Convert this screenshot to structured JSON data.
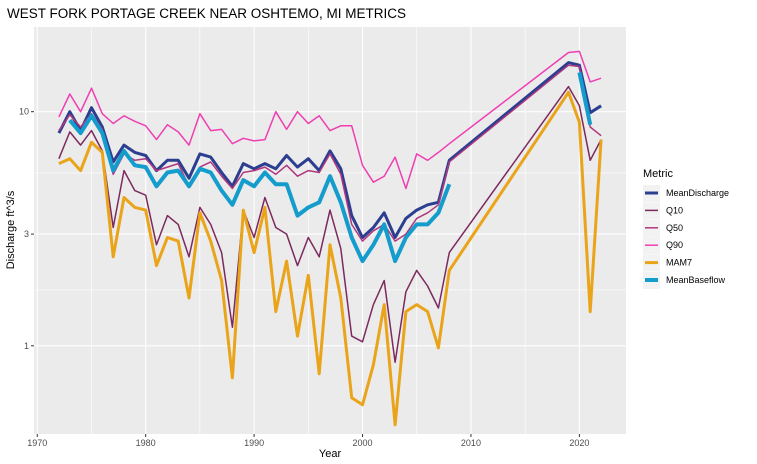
{
  "chart_data": {
    "type": "line",
    "title": "WEST FORK PORTAGE CREEK NEAR OSHTEMO, MI  METRICS",
    "xlabel": "Year",
    "ylabel": "Discharge ft^3/s",
    "y_scale": "log10",
    "xlim": [
      1969.7,
      2024.3
    ],
    "ylim": [
      0.42,
      23
    ],
    "x_ticks": [
      1970,
      1980,
      1990,
      2000,
      2010,
      2020
    ],
    "y_ticks": [
      1,
      3,
      10
    ],
    "grid": true,
    "panel_background": "#ebebeb",
    "legend_title": "Metric",
    "legend_position": "right",
    "series": [
      {
        "name": "MeanDischarge",
        "color": "#2c3e8f",
        "line_width": 3,
        "points": [
          [
            1972,
            8.1
          ],
          [
            1973,
            10.0
          ],
          [
            1974,
            8.3
          ],
          [
            1975,
            10.4
          ],
          [
            1976,
            8.6
          ],
          [
            1977,
            6.1
          ],
          [
            1978,
            7.2
          ],
          [
            1979,
            6.7
          ],
          [
            1980,
            6.5
          ],
          [
            1981,
            5.6
          ],
          [
            1982,
            6.2
          ],
          [
            1983,
            6.2
          ],
          [
            1984,
            5.2
          ],
          [
            1985,
            6.6
          ],
          [
            1986,
            6.4
          ],
          [
            1987,
            5.5
          ],
          [
            1988,
            4.8
          ],
          [
            1989,
            6.0
          ],
          [
            1990,
            5.7
          ],
          [
            1991,
            6.0
          ],
          [
            1992,
            5.7
          ],
          [
            1993,
            6.5
          ],
          [
            1994,
            5.8
          ],
          [
            1995,
            6.3
          ],
          [
            1996,
            5.6
          ],
          [
            1997,
            6.8
          ],
          [
            1998,
            5.7
          ],
          [
            1999,
            3.6
          ],
          [
            2000,
            2.9
          ],
          [
            2001,
            3.2
          ],
          [
            2002,
            3.7
          ],
          [
            2003,
            2.9
          ],
          [
            2004,
            3.5
          ],
          [
            2005,
            3.8
          ],
          [
            2006,
            4.0
          ],
          [
            2007,
            4.1
          ],
          [
            2008,
            6.2
          ],
          [
            2019,
            16.2
          ],
          [
            2020,
            15.8
          ],
          [
            2021,
            9.9
          ],
          [
            2022,
            10.6
          ]
        ]
      },
      {
        "name": "Q10",
        "color": "#7c2a5e",
        "line_width": 1.5,
        "points": [
          [
            1972,
            6.3
          ],
          [
            1973,
            8.2
          ],
          [
            1974,
            7.2
          ],
          [
            1975,
            8.3
          ],
          [
            1976,
            6.8
          ],
          [
            1977,
            3.2
          ],
          [
            1978,
            5.6
          ],
          [
            1979,
            4.6
          ],
          [
            1980,
            4.4
          ],
          [
            1981,
            2.7
          ],
          [
            1982,
            3.6
          ],
          [
            1983,
            3.3
          ],
          [
            1984,
            2.4
          ],
          [
            1985,
            3.9
          ],
          [
            1986,
            3.3
          ],
          [
            1987,
            2.5
          ],
          [
            1988,
            1.2
          ],
          [
            1989,
            3.8
          ],
          [
            1990,
            2.9
          ],
          [
            1991,
            4.3
          ],
          [
            1992,
            3.2
          ],
          [
            1993,
            3.0
          ],
          [
            1994,
            2.2
          ],
          [
            1995,
            2.9
          ],
          [
            1996,
            2.4
          ],
          [
            1997,
            3.8
          ],
          [
            1998,
            2.6
          ],
          [
            1999,
            1.1
          ],
          [
            2000,
            1.04
          ],
          [
            2001,
            1.5
          ],
          [
            2002,
            1.9
          ],
          [
            2003,
            0.85
          ],
          [
            2004,
            1.7
          ],
          [
            2005,
            2.1
          ],
          [
            2006,
            1.8
          ],
          [
            2007,
            1.45
          ],
          [
            2008,
            2.5
          ],
          [
            2019,
            12.8
          ],
          [
            2020,
            10.6
          ],
          [
            2021,
            6.2
          ],
          [
            2022,
            7.6
          ]
        ]
      },
      {
        "name": "Q50",
        "color": "#b0377e",
        "line_width": 1.5,
        "points": [
          [
            1972,
            8.3
          ],
          [
            1973,
            9.7
          ],
          [
            1974,
            8.6
          ],
          [
            1975,
            9.8
          ],
          [
            1976,
            8.4
          ],
          [
            1977,
            5.4
          ],
          [
            1978,
            6.6
          ],
          [
            1979,
            6.2
          ],
          [
            1980,
            6.3
          ],
          [
            1981,
            5.6
          ],
          [
            1982,
            5.8
          ],
          [
            1983,
            6.0
          ],
          [
            1984,
            4.8
          ],
          [
            1985,
            5.8
          ],
          [
            1986,
            6.1
          ],
          [
            1987,
            5.3
          ],
          [
            1988,
            4.7
          ],
          [
            1989,
            5.5
          ],
          [
            1990,
            5.6
          ],
          [
            1991,
            5.8
          ],
          [
            1992,
            5.4
          ],
          [
            1993,
            5.9
          ],
          [
            1994,
            5.3
          ],
          [
            1995,
            5.6
          ],
          [
            1996,
            5.5
          ],
          [
            1997,
            6.6
          ],
          [
            1998,
            5.4
          ],
          [
            1999,
            3.3
          ],
          [
            2000,
            2.8
          ],
          [
            2001,
            3.1
          ],
          [
            2002,
            3.3
          ],
          [
            2003,
            2.8
          ],
          [
            2004,
            3.0
          ],
          [
            2005,
            3.5
          ],
          [
            2006,
            3.7
          ],
          [
            2007,
            4.0
          ],
          [
            2008,
            6.1
          ],
          [
            2019,
            15.8
          ],
          [
            2020,
            15.6
          ],
          [
            2021,
            8.6
          ],
          [
            2022,
            7.9
          ]
        ]
      },
      {
        "name": "Q90",
        "color": "#ef3fb2",
        "line_width": 1.5,
        "points": [
          [
            1972,
            9.5
          ],
          [
            1973,
            11.9
          ],
          [
            1974,
            10.0
          ],
          [
            1975,
            12.6
          ],
          [
            1976,
            9.8
          ],
          [
            1977,
            8.9
          ],
          [
            1978,
            9.6
          ],
          [
            1979,
            9.1
          ],
          [
            1980,
            8.7
          ],
          [
            1981,
            7.6
          ],
          [
            1982,
            8.8
          ],
          [
            1983,
            8.2
          ],
          [
            1984,
            7.2
          ],
          [
            1985,
            9.8
          ],
          [
            1986,
            8.3
          ],
          [
            1987,
            8.4
          ],
          [
            1988,
            7.3
          ],
          [
            1989,
            7.7
          ],
          [
            1990,
            7.5
          ],
          [
            1991,
            7.6
          ],
          [
            1992,
            10.0
          ],
          [
            1993,
            8.4
          ],
          [
            1994,
            10.0
          ],
          [
            1995,
            8.9
          ],
          [
            1996,
            9.6
          ],
          [
            1997,
            8.3
          ],
          [
            1998,
            8.7
          ],
          [
            1999,
            8.7
          ],
          [
            2000,
            5.9
          ],
          [
            2001,
            5.0
          ],
          [
            2002,
            5.3
          ],
          [
            2003,
            6.4
          ],
          [
            2004,
            4.7
          ],
          [
            2005,
            6.6
          ],
          [
            2006,
            6.2
          ],
          [
            2007,
            6.7
          ],
          [
            2008,
            7.3
          ],
          [
            2019,
            17.9
          ],
          [
            2020,
            18.1
          ],
          [
            2021,
            13.4
          ],
          [
            2022,
            13.9
          ]
        ]
      },
      {
        "name": "MAM7",
        "color": "#eaa41a",
        "line_width": 3,
        "points": [
          [
            1972,
            6.0
          ],
          [
            1973,
            6.3
          ],
          [
            1974,
            5.6
          ],
          [
            1975,
            7.4
          ],
          [
            1976,
            6.7
          ],
          [
            1977,
            2.4
          ],
          [
            1978,
            4.3
          ],
          [
            1979,
            3.9
          ],
          [
            1980,
            3.8
          ],
          [
            1981,
            2.2
          ],
          [
            1982,
            2.9
          ],
          [
            1983,
            2.8
          ],
          [
            1984,
            1.6
          ],
          [
            1985,
            3.7
          ],
          [
            1986,
            2.8
          ],
          [
            1987,
            1.9
          ],
          [
            1988,
            0.73
          ],
          [
            1989,
            3.8
          ],
          [
            1990,
            2.5
          ],
          [
            1991,
            3.9
          ],
          [
            1992,
            1.4
          ],
          [
            1993,
            2.3
          ],
          [
            1994,
            1.1
          ],
          [
            1995,
            2.0
          ],
          [
            1996,
            0.76
          ],
          [
            1997,
            2.7
          ],
          [
            1998,
            1.6
          ],
          [
            1999,
            0.6
          ],
          [
            2000,
            0.56
          ],
          [
            2001,
            0.83
          ],
          [
            2002,
            1.5
          ],
          [
            2003,
            0.46
          ],
          [
            2004,
            1.4
          ],
          [
            2005,
            1.5
          ],
          [
            2006,
            1.4
          ],
          [
            2007,
            0.98
          ],
          [
            2008,
            2.1
          ],
          [
            2019,
            12.1
          ],
          [
            2020,
            9.0
          ],
          [
            2021,
            1.4
          ],
          [
            2022,
            7.6
          ]
        ]
      },
      {
        "name": "MeanBaseflow",
        "color": "#139ccc",
        "line_width": 4,
        "points": [
          [
            1973,
            9.2
          ],
          [
            1974,
            8.1
          ],
          [
            1975,
            9.6
          ],
          [
            1976,
            8.1
          ],
          [
            1977,
            5.6
          ],
          [
            1978,
            6.8
          ],
          [
            1979,
            5.9
          ],
          [
            1980,
            5.8
          ],
          [
            1981,
            4.8
          ],
          [
            1982,
            5.5
          ],
          [
            1983,
            5.6
          ],
          [
            1984,
            4.8
          ],
          [
            1985,
            5.7
          ],
          [
            1986,
            5.5
          ],
          [
            1987,
            4.6
          ],
          [
            1988,
            4.0
          ],
          [
            1989,
            5.1
          ],
          [
            1990,
            4.8
          ],
          [
            1991,
            5.5
          ],
          [
            1992,
            4.9
          ],
          [
            1993,
            4.9
          ],
          [
            1994,
            3.6
          ],
          [
            1995,
            3.9
          ],
          [
            1996,
            4.1
          ],
          [
            1997,
            5.3
          ],
          [
            1998,
            4.1
          ],
          [
            1999,
            2.9
          ],
          [
            2000,
            2.3
          ],
          [
            2001,
            2.7
          ],
          [
            2002,
            3.3
          ],
          [
            2003,
            2.3
          ],
          [
            2004,
            2.9
          ],
          [
            2005,
            3.3
          ],
          [
            2006,
            3.3
          ],
          [
            2007,
            3.7
          ],
          [
            2008,
            4.9
          ],
          [
            2020,
            14.7
          ],
          [
            2021,
            8.8
          ]
        ]
      }
    ]
  }
}
